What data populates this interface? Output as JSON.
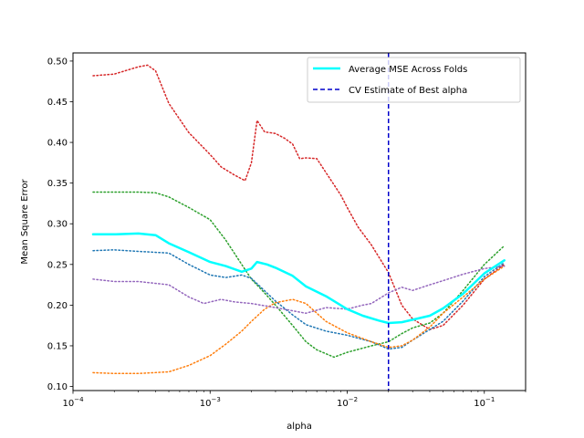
{
  "chart_data": {
    "type": "line",
    "title": "",
    "xlabel": "alpha",
    "ylabel": "Mean Square Error",
    "xscale": "log",
    "xlim": [
      0.0001,
      0.2
    ],
    "ylim": [
      0.095,
      0.51
    ],
    "x_ticks": [
      {
        "value": 0.0001,
        "base": "10",
        "exp": "−4"
      },
      {
        "value": 0.001,
        "base": "10",
        "exp": "−3"
      },
      {
        "value": 0.01,
        "base": "10",
        "exp": "−2"
      },
      {
        "value": 0.1,
        "base": "10",
        "exp": "−1"
      }
    ],
    "y_ticks": [
      "0.10",
      "0.15",
      "0.20",
      "0.25",
      "0.30",
      "0.35",
      "0.40",
      "0.45",
      "0.50"
    ],
    "grid": false,
    "legend_position": "top-right",
    "legend": [
      {
        "label": "Average MSE Across Folds",
        "color": "#00ffff",
        "style": "solid"
      },
      {
        "label": "CV Estimate of Best alpha",
        "color": "#0000cc",
        "style": "dashed"
      }
    ],
    "vline": {
      "x": 0.02,
      "color": "#0000cc",
      "style": "dashed"
    },
    "series": [
      {
        "name": "Average MSE Across Folds",
        "color": "#00ffff",
        "style": "solid",
        "points": [
          [
            0.00014,
            0.287
          ],
          [
            0.0002,
            0.287
          ],
          [
            0.0003,
            0.288
          ],
          [
            0.0004,
            0.286
          ],
          [
            0.0005,
            0.276
          ],
          [
            0.0007,
            0.265
          ],
          [
            0.001,
            0.253
          ],
          [
            0.0013,
            0.248
          ],
          [
            0.0017,
            0.241
          ],
          [
            0.002,
            0.245
          ],
          [
            0.0022,
            0.253
          ],
          [
            0.0026,
            0.25
          ],
          [
            0.003,
            0.246
          ],
          [
            0.004,
            0.236
          ],
          [
            0.005,
            0.223
          ],
          [
            0.007,
            0.211
          ],
          [
            0.01,
            0.195
          ],
          [
            0.013,
            0.187
          ],
          [
            0.017,
            0.181
          ],
          [
            0.02,
            0.178
          ],
          [
            0.025,
            0.179
          ],
          [
            0.03,
            0.182
          ],
          [
            0.04,
            0.187
          ],
          [
            0.05,
            0.196
          ],
          [
            0.07,
            0.214
          ],
          [
            0.1,
            0.239
          ],
          [
            0.14,
            0.255
          ]
        ]
      },
      {
        "name": "",
        "color": "#d62728",
        "style": "dotted",
        "points": [
          [
            0.00014,
            0.482
          ],
          [
            0.0002,
            0.484
          ],
          [
            0.0003,
            0.493
          ],
          [
            0.00035,
            0.495
          ],
          [
            0.0004,
            0.488
          ],
          [
            0.0005,
            0.448
          ],
          [
            0.0007,
            0.412
          ],
          [
            0.001,
            0.385
          ],
          [
            0.0012,
            0.37
          ],
          [
            0.0015,
            0.36
          ],
          [
            0.0018,
            0.353
          ],
          [
            0.002,
            0.375
          ],
          [
            0.0022,
            0.427
          ],
          [
            0.0025,
            0.413
          ],
          [
            0.003,
            0.411
          ],
          [
            0.0035,
            0.405
          ],
          [
            0.004,
            0.398
          ],
          [
            0.0045,
            0.38
          ],
          [
            0.005,
            0.381
          ],
          [
            0.006,
            0.38
          ],
          [
            0.007,
            0.363
          ],
          [
            0.009,
            0.335
          ],
          [
            0.01,
            0.32
          ],
          [
            0.012,
            0.296
          ],
          [
            0.015,
            0.274
          ],
          [
            0.02,
            0.24
          ],
          [
            0.025,
            0.2
          ],
          [
            0.03,
            0.183
          ],
          [
            0.04,
            0.17
          ],
          [
            0.05,
            0.175
          ],
          [
            0.07,
            0.2
          ],
          [
            0.1,
            0.232
          ],
          [
            0.14,
            0.25
          ]
        ]
      },
      {
        "name": "",
        "color": "#2ca02c",
        "style": "dotted",
        "points": [
          [
            0.00014,
            0.339
          ],
          [
            0.0002,
            0.339
          ],
          [
            0.0003,
            0.339
          ],
          [
            0.0004,
            0.338
          ],
          [
            0.0005,
            0.333
          ],
          [
            0.0007,
            0.32
          ],
          [
            0.001,
            0.305
          ],
          [
            0.0013,
            0.28
          ],
          [
            0.0017,
            0.25
          ],
          [
            0.002,
            0.232
          ],
          [
            0.0025,
            0.215
          ],
          [
            0.003,
            0.2
          ],
          [
            0.004,
            0.175
          ],
          [
            0.005,
            0.155
          ],
          [
            0.006,
            0.145
          ],
          [
            0.008,
            0.136
          ],
          [
            0.01,
            0.142
          ],
          [
            0.015,
            0.15
          ],
          [
            0.02,
            0.155
          ],
          [
            0.025,
            0.165
          ],
          [
            0.03,
            0.172
          ],
          [
            0.04,
            0.178
          ],
          [
            0.05,
            0.19
          ],
          [
            0.07,
            0.218
          ],
          [
            0.1,
            0.25
          ],
          [
            0.14,
            0.273
          ]
        ]
      },
      {
        "name": "",
        "color": "#1f77b4",
        "style": "dotted",
        "points": [
          [
            0.00014,
            0.267
          ],
          [
            0.0002,
            0.268
          ],
          [
            0.0003,
            0.266
          ],
          [
            0.0005,
            0.264
          ],
          [
            0.0007,
            0.25
          ],
          [
            0.001,
            0.237
          ],
          [
            0.0013,
            0.234
          ],
          [
            0.0017,
            0.237
          ],
          [
            0.002,
            0.233
          ],
          [
            0.003,
            0.205
          ],
          [
            0.004,
            0.188
          ],
          [
            0.005,
            0.176
          ],
          [
            0.007,
            0.168
          ],
          [
            0.01,
            0.163
          ],
          [
            0.015,
            0.155
          ],
          [
            0.02,
            0.146
          ],
          [
            0.025,
            0.148
          ],
          [
            0.03,
            0.157
          ],
          [
            0.04,
            0.17
          ],
          [
            0.05,
            0.18
          ],
          [
            0.07,
            0.205
          ],
          [
            0.1,
            0.235
          ],
          [
            0.14,
            0.252
          ]
        ]
      },
      {
        "name": "",
        "color": "#ff7f0e",
        "style": "dotted",
        "points": [
          [
            0.00014,
            0.117
          ],
          [
            0.0002,
            0.116
          ],
          [
            0.0003,
            0.116
          ],
          [
            0.0005,
            0.118
          ],
          [
            0.0007,
            0.126
          ],
          [
            0.001,
            0.138
          ],
          [
            0.0013,
            0.152
          ],
          [
            0.0017,
            0.168
          ],
          [
            0.002,
            0.18
          ],
          [
            0.0025,
            0.195
          ],
          [
            0.003,
            0.203
          ],
          [
            0.004,
            0.207
          ],
          [
            0.005,
            0.202
          ],
          [
            0.007,
            0.18
          ],
          [
            0.01,
            0.166
          ],
          [
            0.015,
            0.155
          ],
          [
            0.02,
            0.148
          ],
          [
            0.025,
            0.15
          ],
          [
            0.03,
            0.157
          ],
          [
            0.04,
            0.173
          ],
          [
            0.05,
            0.19
          ],
          [
            0.07,
            0.21
          ],
          [
            0.1,
            0.232
          ],
          [
            0.14,
            0.248
          ]
        ]
      },
      {
        "name": "",
        "color": "#9467bd",
        "style": "dotted",
        "points": [
          [
            0.00014,
            0.232
          ],
          [
            0.0002,
            0.229
          ],
          [
            0.0003,
            0.229
          ],
          [
            0.0005,
            0.225
          ],
          [
            0.0007,
            0.21
          ],
          [
            0.0009,
            0.202
          ],
          [
            0.0012,
            0.207
          ],
          [
            0.0015,
            0.204
          ],
          [
            0.002,
            0.202
          ],
          [
            0.003,
            0.197
          ],
          [
            0.005,
            0.19
          ],
          [
            0.007,
            0.197
          ],
          [
            0.01,
            0.195
          ],
          [
            0.013,
            0.2
          ],
          [
            0.015,
            0.202
          ],
          [
            0.02,
            0.215
          ],
          [
            0.025,
            0.222
          ],
          [
            0.03,
            0.218
          ],
          [
            0.04,
            0.225
          ],
          [
            0.05,
            0.23
          ],
          [
            0.07,
            0.238
          ],
          [
            0.1,
            0.245
          ],
          [
            0.14,
            0.248
          ]
        ]
      }
    ]
  }
}
